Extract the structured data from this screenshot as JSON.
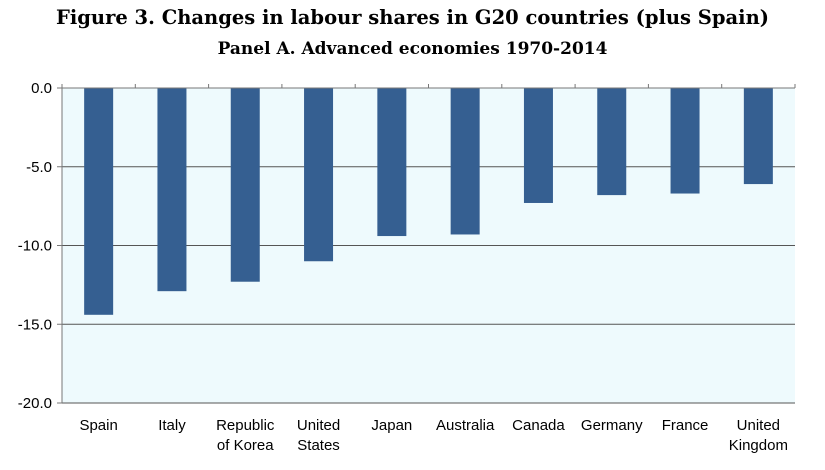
{
  "figure": {
    "title": "Figure 3. Changes in labour shares in G20 countries (plus Spain)",
    "subtitle": "Panel A. Advanced economies 1970-2014"
  },
  "colors": {
    "bar": "#355f91",
    "plot_background": "#eefafd",
    "gridline": "#555555",
    "axis": "#777777"
  },
  "chart_data": {
    "type": "bar",
    "title": "Panel A. Advanced economies 1970-2014",
    "xlabel": "",
    "ylabel": "",
    "categories": [
      "Spain",
      "Italy",
      "Republic of Korea",
      "United States",
      "Japan",
      "Australia",
      "Canada",
      "Germany",
      "France",
      "United Kingdom"
    ],
    "category_lines": [
      [
        "Spain"
      ],
      [
        "Italy"
      ],
      [
        "Republic",
        "of Korea"
      ],
      [
        "United",
        "States"
      ],
      [
        "Japan"
      ],
      [
        "Australia"
      ],
      [
        "Canada"
      ],
      [
        "Germany"
      ],
      [
        "France"
      ],
      [
        "United",
        "Kingdom"
      ]
    ],
    "values": [
      -14.4,
      -12.9,
      -12.3,
      -11.0,
      -9.4,
      -9.3,
      -7.3,
      -6.8,
      -6.7,
      -6.1
    ],
    "ylim": [
      -20.0,
      0.0
    ],
    "yticks": [
      0.0,
      -5.0,
      -10.0,
      -15.0,
      -20.0
    ],
    "ytick_labels": [
      "0.0",
      "-5.0",
      "-10.0",
      "-15.0",
      "-20.0"
    ],
    "grid": true,
    "legend": "none"
  }
}
